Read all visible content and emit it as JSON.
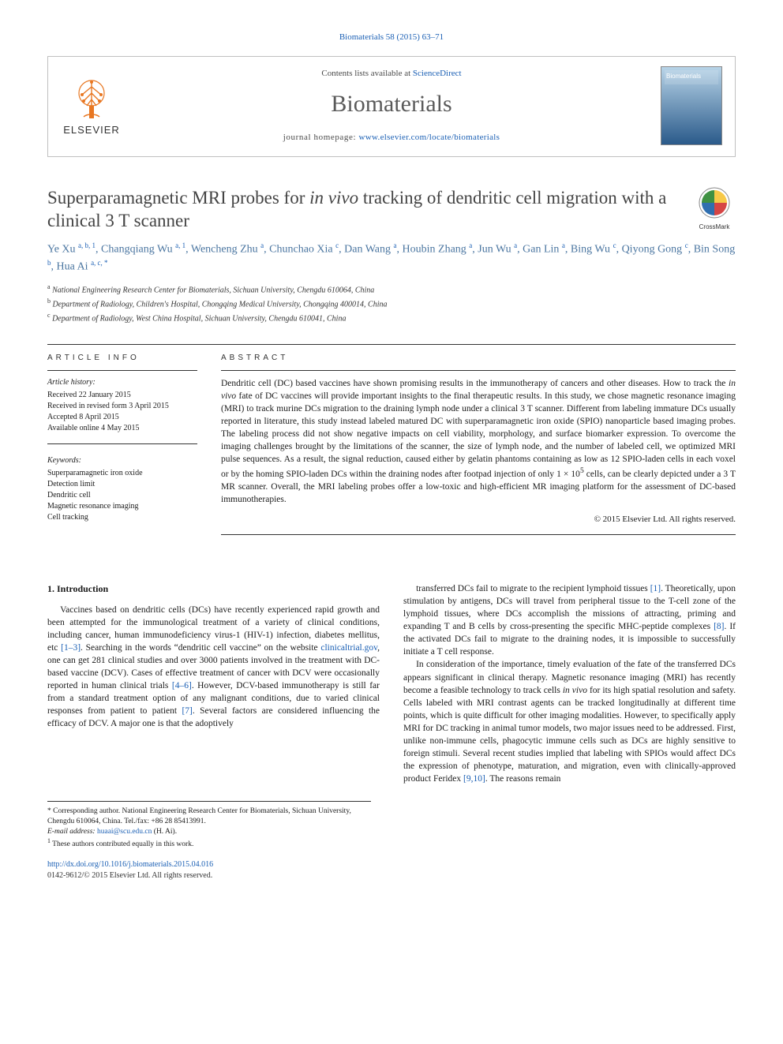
{
  "running_head": {
    "citation": "Biomaterials 58 (2015) 63–71"
  },
  "header": {
    "publisher": "ELSEVIER",
    "contents_prefix": "Contents lists available at ",
    "contents_link_text": "ScienceDirect",
    "journal": "Biomaterials",
    "homepage_prefix": "journal homepage: ",
    "homepage_url": "www.elsevier.com/locate/biomaterials",
    "cover_label": "Biomaterials",
    "tree_color": "#e87722",
    "publisher_color": "#333333",
    "box_border": "#c0c0c0"
  },
  "crossmark": {
    "label": "CrossMark",
    "colors": {
      "yellow": "#f7c948",
      "red": "#d64545",
      "blue": "#2f6fb0",
      "green": "#3f9142"
    }
  },
  "title": {
    "html": "Superparamagnetic MRI probes for <em>in vivo</em> tracking of dendritic cell migration with a clinical 3 T scanner"
  },
  "authors": {
    "list": "Ye Xu <sup>a, b, 1</sup>, Changqiang Wu <sup>a, 1</sup>, Wencheng Zhu <sup>a</sup>, Chunchao Xia <sup>c</sup>, Dan Wang <sup>a</sup>, Houbin Zhang <sup>a</sup>, Jun Wu <sup>a</sup>, Gan Lin <sup>a</sup>, Bing Wu <sup>c</sup>, Qiyong Gong <sup>c</sup>, Bin Song <sup>b</sup>, Hua Ai <sup>a, c, *</sup>"
  },
  "affiliations": [
    {
      "key": "a",
      "text": "National Engineering Research Center for Biomaterials, Sichuan University, Chengdu 610064, China"
    },
    {
      "key": "b",
      "text": "Department of Radiology, Children's Hospital, Chongqing Medical University, Chongqing 400014, China"
    },
    {
      "key": "c",
      "text": "Department of Radiology, West China Hospital, Sichuan University, Chengdu 610041, China"
    }
  ],
  "article_info": {
    "heading": "ARTICLE INFO",
    "history_label": "Article history:",
    "received": "Received 22 January 2015",
    "revised": "Received in revised form 3 April 2015",
    "accepted": "Accepted 8 April 2015",
    "online": "Available online 4 May 2015",
    "keywords_label": "Keywords:",
    "keywords": [
      "Superparamagnetic iron oxide",
      "Detection limit",
      "Dendritic cell",
      "Magnetic resonance imaging",
      "Cell tracking"
    ]
  },
  "abstract": {
    "heading": "ABSTRACT",
    "text": "Dendritic cell (DC) based vaccines have shown promising results in the immunotherapy of cancers and other diseases. How to track the <em>in vivo</em> fate of DC vaccines will provide important insights to the final therapeutic results. In this study, we chose magnetic resonance imaging (MRI) to track murine DCs migration to the draining lymph node under a clinical 3 T scanner. Different from labeling immature DCs usually reported in literature, this study instead labeled matured DC with superparamagnetic iron oxide (SPIO) nanoparticle based imaging probes. The labeling process did not show negative impacts on cell viability, morphology, and surface biomarker expression. To overcome the imaging challenges brought by the limitations of the scanner, the size of lymph node, and the number of labeled cell, we optimized MRI pulse sequences. As a result, the signal reduction, caused either by gelatin phantoms containing as low as 12 SPIO-laden cells in each voxel or by the homing SPIO-laden DCs within the draining nodes after footpad injection of only 1 × 10<sup>5</sup> cells, can be clearly depicted under a 3 T MR scanner. Overall, the MRI labeling probes offer a low-toxic and high-efficient MR imaging platform for the assessment of DC-based immunotherapies.",
    "copyright": "© 2015 Elsevier Ltd. All rights reserved."
  },
  "body": {
    "section_heading": "1. Introduction",
    "para1": "Vaccines based on dendritic cells (DCs) have recently experienced rapid growth and been attempted for the immunological treatment of a variety of clinical conditions, including cancer, human immunodeficiency virus-1 (HIV-1) infection, diabetes mellitus, etc <a class=\"ref\" href=\"#\">[1–3]</a>. Searching in the words “dendritic cell vaccine” on the website <a class=\"ref\" href=\"#\">clinicaltrial.gov</a>, one can get 281 clinical studies and over 3000 patients involved in the treatment with DC-based vaccine (DCV). Cases of effective treatment of cancer with DCV were occasionally reported in human clinical trials <a class=\"ref\" href=\"#\">[4–6]</a>. However, DCV-based immunotherapy is still far from a standard treatment option of any malignant conditions, due to varied clinical responses from patient to patient <a class=\"ref\" href=\"#\">[7]</a>. Several factors are considered influencing the efficacy of DCV. A major one is that the adoptively",
    "para2": "transferred DCs fail to migrate to the recipient lymphoid tissues <a class=\"ref\" href=\"#\">[1]</a>. Theoretically, upon stimulation by antigens, DCs will travel from peripheral tissue to the T-cell zone of the lymphoid tissues, where DCs accomplish the missions of attracting, priming and expanding T and B cells by cross-presenting the specific MHC-peptide complexes <a class=\"ref\" href=\"#\">[8]</a>. If the activated DCs fail to migrate to the draining nodes, it is impossible to successfully initiate a T cell response.",
    "para3": "In consideration of the importance, timely evaluation of the fate of the transferred DCs appears significant in clinical therapy. Magnetic resonance imaging (MRI) has recently become a feasible technology to track cells <em>in vivo</em> for its high spatial resolution and safety. Cells labeled with MRI contrast agents can be tracked longitudinally at different time points, which is quite difficult for other imaging modalities. However, to specifically apply MRI for DC tracking in animal tumor models, two major issues need to be addressed. First, unlike non-immune cells, phagocytic immune cells such as DCs are highly sensitive to foreign stimuli. Several recent studies implied that labeling with SPIOs would affect DCs the expression of phenotype, maturation, and migration, even with clinically-approved product Feridex <a class=\"ref\" href=\"#\">[9,10]</a>. The reasons remain"
  },
  "footnotes": {
    "corresponding": "* Corresponding author. National Engineering Research Center for Biomaterials, Sichuan University, Chengdu 610064, China. Tel./fax: +86 28 85413991.",
    "email_label": "E-mail address:",
    "email": "huaai@scu.edu.cn",
    "email_author": "(H. Ai).",
    "equal": "These authors contributed equally in this work.",
    "equal_mark": "1"
  },
  "doi": {
    "url": "http://dx.doi.org/10.1016/j.biomaterials.2015.04.016",
    "issn_line": "0142-9612/© 2015 Elsevier Ltd. All rights reserved."
  },
  "colors": {
    "link": "#1a5fb4",
    "text": "#1a1a1a",
    "muted": "#4a4a4a",
    "author": "#4a75a0"
  }
}
